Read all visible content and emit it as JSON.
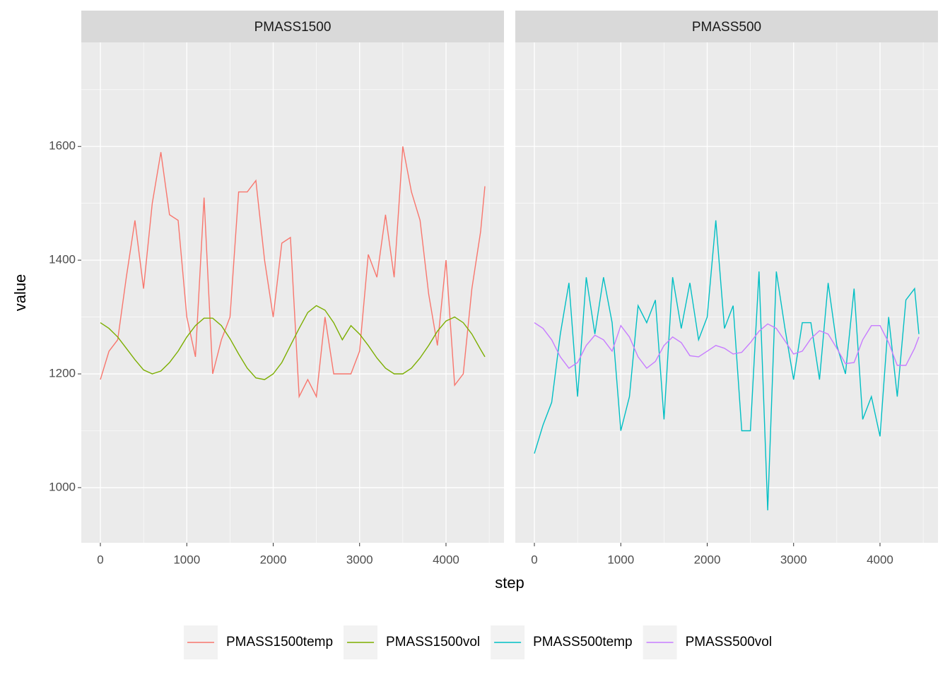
{
  "chart_data": {
    "type": "line",
    "x_label": "step",
    "y_label": "value",
    "x": [
      0,
      100,
      200,
      300,
      400,
      500,
      600,
      700,
      800,
      900,
      1000,
      1100,
      1200,
      1300,
      1400,
      1500,
      1600,
      1700,
      1800,
      1900,
      2000,
      2100,
      2200,
      2300,
      2400,
      2500,
      2600,
      2700,
      2800,
      2900,
      3000,
      3100,
      3200,
      3300,
      3400,
      3500,
      3600,
      3700,
      3800,
      3900,
      4000,
      4100,
      4200,
      4300,
      4400,
      4450
    ],
    "xlim": [
      -221,
      4671
    ],
    "xticks": [
      0,
      1000,
      2000,
      3000,
      4000
    ],
    "ylim": [
      903,
      1783
    ],
    "yticks": [
      1000,
      1200,
      1400,
      1600
    ],
    "grid": true,
    "legend": "bottom",
    "panels": [
      {
        "title": "PMASS1500",
        "series": [
          {
            "name": "PMASS1500temp",
            "color": "#f8766d",
            "values": [
              1190,
              1240,
              1260,
              1370,
              1470,
              1350,
              1500,
              1590,
              1480,
              1470,
              1300,
              1230,
              1510,
              1200,
              1260,
              1300,
              1520,
              1520,
              1540,
              1400,
              1300,
              1430,
              1440,
              1160,
              1190,
              1160,
              1300,
              1200,
              1200,
              1200,
              1240,
              1410,
              1370,
              1480,
              1370,
              1600,
              1520,
              1470,
              1340,
              1250,
              1400,
              1180,
              1200,
              1350,
              1450,
              1530
            ]
          },
          {
            "name": "PMASS1500vol",
            "color": "#7cae00",
            "values": [
              1290,
              1280,
              1265,
              1245,
              1225,
              1207,
              1200,
              1205,
              1220,
              1240,
              1265,
              1285,
              1298,
              1298,
              1285,
              1262,
              1235,
              1210,
              1193,
              1190,
              1200,
              1220,
              1250,
              1280,
              1308,
              1320,
              1312,
              1290,
              1260,
              1285,
              1270,
              1250,
              1228,
              1210,
              1200,
              1200,
              1210,
              1228,
              1250,
              1275,
              1293,
              1300,
              1290,
              1270,
              1243,
              1230
            ]
          }
        ]
      },
      {
        "title": "PMASS500",
        "series": [
          {
            "name": "PMASS500temp",
            "color": "#00bfc4",
            "values": [
              1060,
              1110,
              1150,
              1270,
              1360,
              1160,
              1370,
              1270,
              1370,
              1290,
              1100,
              1160,
              1320,
              1290,
              1330,
              1120,
              1370,
              1280,
              1360,
              1260,
              1300,
              1470,
              1280,
              1320,
              1100,
              1100,
              1380,
              960,
              1380,
              1280,
              1190,
              1290,
              1290,
              1190,
              1360,
              1250,
              1200,
              1350,
              1120,
              1160,
              1090,
              1300,
              1160,
              1330,
              1350,
              1270
            ]
          },
          {
            "name": "PMASS500vol",
            "color": "#c77cff",
            "values": [
              1290,
              1280,
              1260,
              1230,
              1210,
              1220,
              1250,
              1268,
              1260,
              1240,
              1285,
              1265,
              1230,
              1210,
              1222,
              1250,
              1265,
              1255,
              1232,
              1230,
              1240,
              1250,
              1245,
              1235,
              1238,
              1255,
              1275,
              1288,
              1280,
              1258,
              1235,
              1240,
              1262,
              1276,
              1270,
              1245,
              1218,
              1220,
              1260,
              1285,
              1285,
              1255,
              1215,
              1215,
              1245,
              1265
            ]
          }
        ]
      }
    ]
  }
}
